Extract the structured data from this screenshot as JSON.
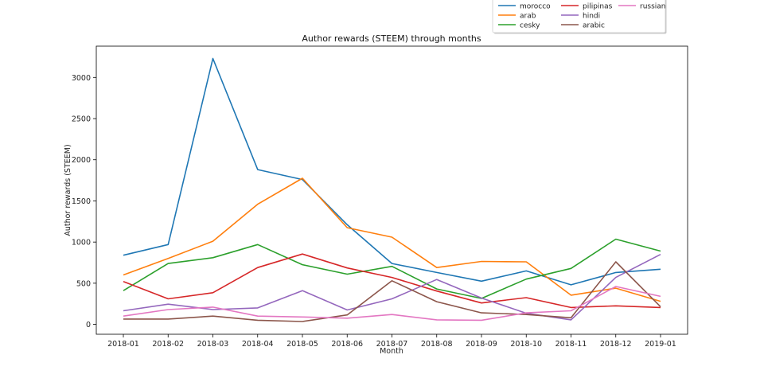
{
  "chart_data": {
    "type": "line",
    "title": "Author rewards (STEEM) through months",
    "xlabel": "Month",
    "ylabel": "Author rewards (STEEM)",
    "categories": [
      "2018-01",
      "2018-02",
      "2018-03",
      "2018-04",
      "2018-05",
      "2018-06",
      "2018-07",
      "2018-08",
      "2018-09",
      "2018-10",
      "2018-11",
      "2018-12",
      "2019-01"
    ],
    "ylim": [
      -120,
      3380
    ],
    "yticks": [
      0,
      500,
      1000,
      1500,
      2000,
      2500,
      3000
    ],
    "grid": false,
    "legend_placement": "top-right, outside",
    "series": [
      {
        "name": "morocco",
        "color": "#1f77b4",
        "values": [
          840,
          970,
          3230,
          1880,
          1760,
          1210,
          740,
          630,
          525,
          650,
          480,
          630,
          670
        ]
      },
      {
        "name": "arab",
        "color": "#ff7f0e",
        "values": [
          600,
          800,
          1010,
          1460,
          1775,
          1175,
          1060,
          690,
          765,
          760,
          355,
          440,
          280
        ]
      },
      {
        "name": "cesky",
        "color": "#2ca02c",
        "values": [
          410,
          740,
          810,
          970,
          725,
          610,
          705,
          430,
          315,
          550,
          680,
          1035,
          890
        ]
      },
      {
        "name": "pilipinas",
        "color": "#d62728",
        "values": [
          520,
          310,
          385,
          690,
          855,
          685,
          570,
          405,
          260,
          325,
          205,
          225,
          205
        ]
      },
      {
        "name": "hindi",
        "color": "#9467bd",
        "values": [
          165,
          245,
          180,
          200,
          410,
          175,
          310,
          545,
          320,
          135,
          55,
          570,
          850
        ]
      },
      {
        "name": "arabic",
        "color": "#8c564b",
        "values": [
          65,
          65,
          100,
          50,
          35,
          115,
          530,
          275,
          140,
          120,
          80,
          760,
          215
        ]
      },
      {
        "name": "russian",
        "color": "#e377c2",
        "values": [
          100,
          180,
          210,
          100,
          90,
          75,
          120,
          55,
          50,
          140,
          165,
          460,
          340
        ]
      }
    ]
  }
}
